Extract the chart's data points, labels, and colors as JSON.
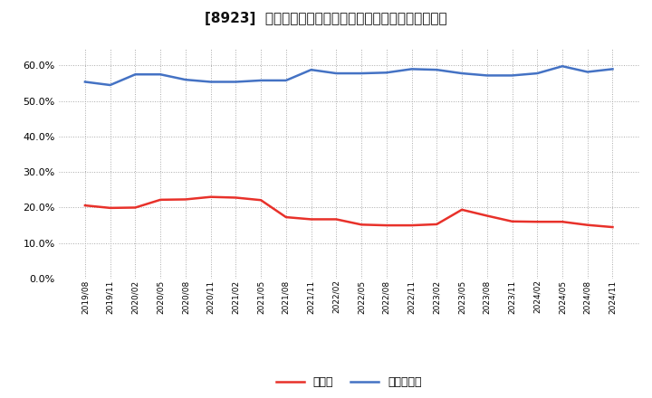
{
  "title": "[8923]  現頲金、有利子負債の総資産に対する比率の推移",
  "x_labels": [
    "2019/08",
    "2019/11",
    "2020/02",
    "2020/05",
    "2020/08",
    "2020/11",
    "2021/02",
    "2021/05",
    "2021/08",
    "2021/11",
    "2022/02",
    "2022/05",
    "2022/08",
    "2022/11",
    "2023/02",
    "2023/05",
    "2023/08",
    "2023/11",
    "2024/02",
    "2024/05",
    "2024/08",
    "2024/11"
  ],
  "cash": [
    0.206,
    0.199,
    0.2,
    0.222,
    0.223,
    0.23,
    0.228,
    0.221,
    0.173,
    0.167,
    0.167,
    0.152,
    0.15,
    0.15,
    0.153,
    0.194,
    0.177,
    0.161,
    0.16,
    0.16,
    0.151,
    0.145
  ],
  "debt": [
    0.554,
    0.545,
    0.575,
    0.575,
    0.56,
    0.554,
    0.554,
    0.558,
    0.558,
    0.588,
    0.578,
    0.578,
    0.58,
    0.59,
    0.588,
    0.578,
    0.572,
    0.572,
    0.578,
    0.598,
    0.582,
    0.59
  ],
  "cash_color": "#e8312a",
  "debt_color": "#4472c4",
  "cash_label": "現頲金",
  "debt_label": "有利子負債",
  "background_color": "#ffffff",
  "grid_color": "#aaaaaa",
  "ylim": [
    0.0,
    0.65
  ],
  "yticks": [
    0.0,
    0.1,
    0.2,
    0.3,
    0.4,
    0.5,
    0.6
  ]
}
